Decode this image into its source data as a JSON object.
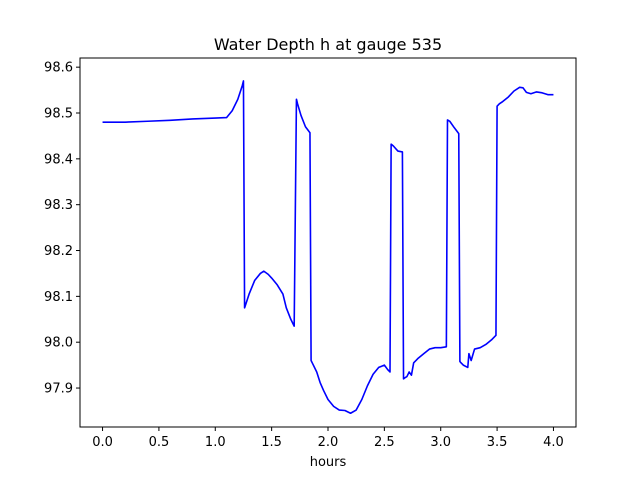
{
  "chart_data": {
    "type": "line",
    "title": "Water Depth h at gauge 535",
    "xlabel": "hours",
    "ylabel": "",
    "xlim": [
      -0.2,
      4.2
    ],
    "ylim": [
      97.815,
      98.62
    ],
    "xticks": [
      0.0,
      0.5,
      1.0,
      1.5,
      2.0,
      2.5,
      3.0,
      3.5,
      4.0
    ],
    "xtick_labels": [
      "0.0",
      "0.5",
      "1.0",
      "1.5",
      "2.0",
      "2.5",
      "3.0",
      "3.5",
      "4.0"
    ],
    "yticks": [
      97.9,
      98.0,
      98.1,
      98.2,
      98.3,
      98.4,
      98.5,
      98.6
    ],
    "ytick_labels": [
      "97.9",
      "98.0",
      "98.1",
      "98.2",
      "98.3",
      "98.4",
      "98.5",
      "98.6"
    ],
    "grid": false,
    "series": [
      {
        "color": "#0000ff",
        "x": [
          0.0,
          0.2,
          0.4,
          0.6,
          0.8,
          1.0,
          1.1,
          1.15,
          1.2,
          1.24,
          1.25,
          1.26,
          1.3,
          1.35,
          1.4,
          1.43,
          1.47,
          1.5,
          1.55,
          1.6,
          1.63,
          1.67,
          1.7,
          1.72,
          1.73,
          1.76,
          1.8,
          1.84,
          1.85,
          1.86,
          1.9,
          1.93,
          1.96,
          2.0,
          2.05,
          2.1,
          2.15,
          2.2,
          2.25,
          2.3,
          2.35,
          2.4,
          2.45,
          2.5,
          2.53,
          2.55,
          2.56,
          2.58,
          2.62,
          2.66,
          2.67,
          2.68,
          2.7,
          2.72,
          2.74,
          2.76,
          2.78,
          2.8,
          2.85,
          2.9,
          2.95,
          3.0,
          3.05,
          3.06,
          3.08,
          3.12,
          3.16,
          3.17,
          3.18,
          3.2,
          3.24,
          3.25,
          3.27,
          3.3,
          3.35,
          3.4,
          3.45,
          3.49,
          3.5,
          3.52,
          3.55,
          3.6,
          3.65,
          3.7,
          3.73,
          3.76,
          3.8,
          3.85,
          3.9,
          3.95,
          4.0
        ],
        "y": [
          98.48,
          98.48,
          98.482,
          98.484,
          98.487,
          98.489,
          98.49,
          98.505,
          98.53,
          98.56,
          98.57,
          98.075,
          98.105,
          98.135,
          98.15,
          98.155,
          98.148,
          98.14,
          98.125,
          98.105,
          98.075,
          98.05,
          98.035,
          98.53,
          98.52,
          98.495,
          98.47,
          98.457,
          97.96,
          97.955,
          97.935,
          97.912,
          97.895,
          97.875,
          97.86,
          97.852,
          97.851,
          97.845,
          97.852,
          97.875,
          97.905,
          97.93,
          97.945,
          97.95,
          97.94,
          97.935,
          98.432,
          98.428,
          98.417,
          98.415,
          97.92,
          97.922,
          97.925,
          97.935,
          97.928,
          97.955,
          97.96,
          97.965,
          97.975,
          97.985,
          97.988,
          97.988,
          97.99,
          98.485,
          98.482,
          98.468,
          98.455,
          97.958,
          97.955,
          97.95,
          97.945,
          97.975,
          97.96,
          97.985,
          97.988,
          97.995,
          98.005,
          98.015,
          98.515,
          98.52,
          98.525,
          98.535,
          98.548,
          98.556,
          98.555,
          98.545,
          98.542,
          98.546,
          98.544,
          98.54,
          98.54
        ]
      }
    ]
  }
}
